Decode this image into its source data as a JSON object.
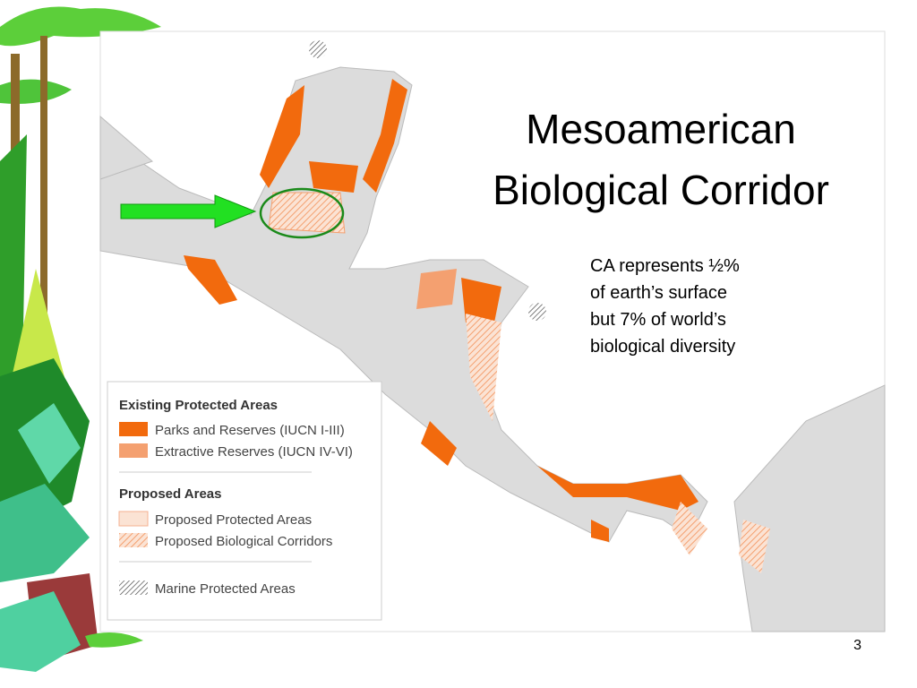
{
  "title": {
    "lines": [
      "Mesoamerican",
      "Biological Corridor"
    ]
  },
  "note": {
    "lines": [
      "CA represents ½%",
      "of earth’s surface",
      "but 7% of world’s",
      "biological diversity"
    ]
  },
  "legend": {
    "sections": [
      {
        "heading": "Existing Protected Areas",
        "items": [
          "Parks and Reserves (IUCN I-III)",
          "Extractive Reserves (IUCN IV-VI)"
        ]
      },
      {
        "heading": "Proposed Areas",
        "items": [
          "Proposed Protected Areas",
          "Proposed Biological Corridors"
        ]
      }
    ],
    "marine": "Marine Protected Areas"
  },
  "page_number": "3"
}
